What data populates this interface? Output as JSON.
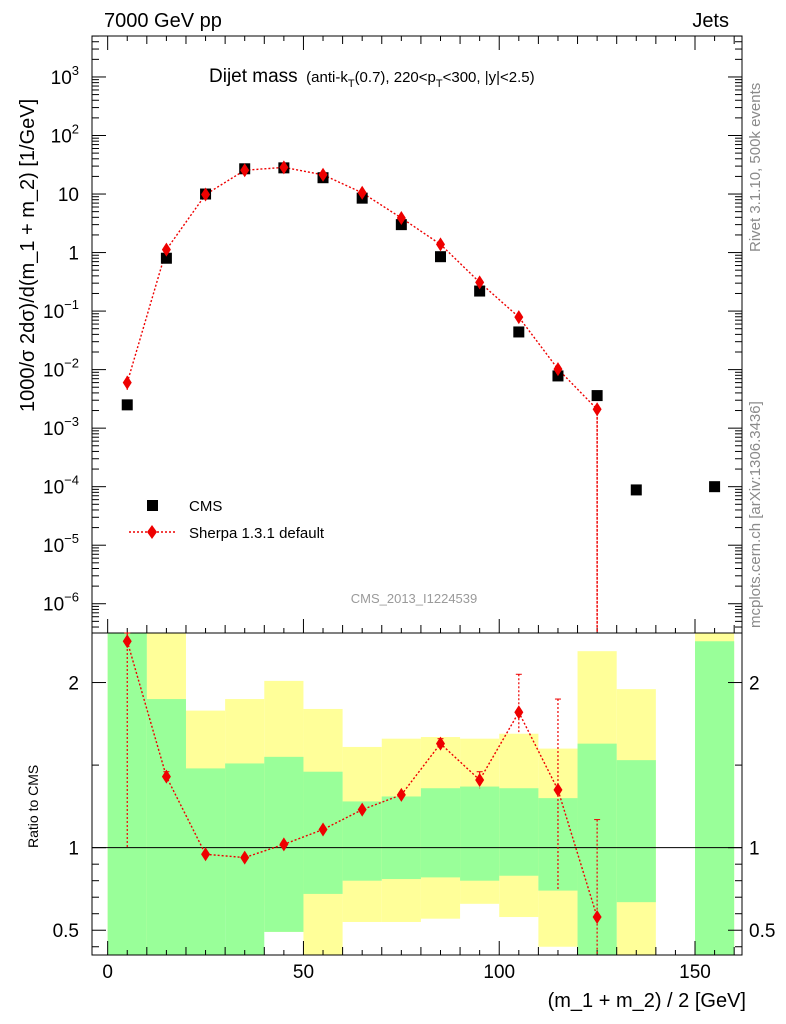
{
  "header": {
    "left": "7000 GeV pp",
    "right": "Jets"
  },
  "side_labels": {
    "rivet": "Rivet 3.1.10,  500k events",
    "mcplots": "mcplots.cern.ch [arXiv:1306.3436]"
  },
  "watermark": "CMS_2013_I1224539",
  "colors": {
    "green_band": "#99ff99",
    "yellow_band": "#ffff99",
    "mc": "#ee0000",
    "data": "#000000"
  },
  "chart_data": [
    {
      "type": "scatter",
      "title_main": "Dijet mass",
      "title_sub": "(anti-k",
      "title_sub_T": "T",
      "title_sub_mid": "(0.7), 220<p",
      "title_sub_T2": "T",
      "title_sub_end": "<300, |y|<2.5)",
      "ylabel": "1000/σ 2dσ)/d(m_1 + m_2) [1/GeV]",
      "yscale": "log",
      "ylim_exp": [
        -6.5,
        3.7
      ],
      "xlim": [
        -4,
        162
      ],
      "y_ticks": [
        {
          "v": 1000,
          "base": "10",
          "exp": "3"
        },
        {
          "v": 100,
          "base": "10",
          "exp": "2"
        },
        {
          "v": 10,
          "base": "10",
          "exp": ""
        },
        {
          "v": 1,
          "base": "1",
          "exp": ""
        },
        {
          "v": 0.1,
          "base": "10",
          "exp": "−1"
        },
        {
          "v": 0.01,
          "base": "10",
          "exp": "−2"
        },
        {
          "v": 0.001,
          "base": "10",
          "exp": "−3"
        },
        {
          "v": 0.0001,
          "base": "10",
          "exp": "−4"
        },
        {
          "v": 1e-05,
          "base": "10",
          "exp": "−5"
        },
        {
          "v": 1e-06,
          "base": "10",
          "exp": "−6"
        }
      ],
      "legend": [
        {
          "name": "CMS",
          "marker": "square"
        },
        {
          "name": "Sherpa 1.3.1 default",
          "marker": "diamond"
        }
      ],
      "series": [
        {
          "name": "CMS",
          "x": [
            5,
            15,
            25,
            35,
            45,
            55,
            65,
            75,
            85,
            95,
            105,
            115,
            125,
            135,
            155
          ],
          "y": [
            0.0025,
            0.8,
            10,
            27,
            28,
            19,
            8.5,
            3.0,
            0.85,
            0.22,
            0.044,
            0.0078,
            0.0036,
            8.8e-05,
            0.0001
          ]
        },
        {
          "name": "Sherpa 1.3.1 default",
          "x": [
            5,
            15,
            25,
            35,
            45,
            55,
            65,
            75,
            85,
            95,
            105,
            115,
            125
          ],
          "y": [
            0.006,
            1.12,
            9.8,
            25.5,
            28.5,
            21.3,
            10.5,
            3.9,
            1.38,
            0.31,
            0.079,
            0.0102,
            0.0021
          ],
          "yerr_low": [
            0.0045,
            0.9,
            9.4,
            25.2,
            28.2,
            21.0,
            10.3,
            3.8,
            1.34,
            0.3,
            0.074,
            0.0085,
            1e-07
          ],
          "yerr_high": [
            0.0078,
            1.35,
            10.2,
            25.8,
            28.8,
            21.6,
            10.7,
            4.0,
            1.42,
            0.32,
            0.084,
            0.012,
            0.0024
          ]
        }
      ]
    },
    {
      "type": "scatter",
      "ylabel": "Ratio to CMS",
      "xlabel": "(m_1 + m_2) / 2 [GeV]",
      "ylim": [
        0.35,
        2.3
      ],
      "xlim": [
        -4,
        162
      ],
      "x_ticks": [
        0,
        50,
        100,
        150
      ],
      "y_ticks": [
        {
          "v": 2,
          "label": "2"
        },
        {
          "v": 1,
          "label": "1"
        },
        {
          "v": 0.5,
          "label": "0.5"
        }
      ],
      "bands": [
        {
          "x0": 0,
          "x1": 10,
          "y_lo": 0.35,
          "y_hi": 2.3,
          "g_lo": 0.35,
          "g_hi": 2.3
        },
        {
          "x0": 10,
          "x1": 20,
          "y_lo": 0.35,
          "y_hi": 2.3,
          "g_lo": 0.35,
          "g_hi": 1.9
        },
        {
          "x0": 20,
          "x1": 30,
          "y_lo": 0.72,
          "y_hi": 1.83,
          "g_lo": 0.35,
          "g_hi": 1.48
        },
        {
          "x0": 30,
          "x1": 40,
          "y_lo": 0.65,
          "y_hi": 1.9,
          "g_lo": 0.35,
          "g_hi": 1.51
        },
        {
          "x0": 40,
          "x1": 50,
          "y_lo": 0.49,
          "y_hi": 2.01,
          "g_lo": 0.49,
          "g_hi": 1.55
        },
        {
          "x0": 50,
          "x1": 60,
          "y_lo": 0.35,
          "y_hi": 1.84,
          "g_lo": 0.72,
          "g_hi": 1.46
        },
        {
          "x0": 60,
          "x1": 70,
          "y_lo": 0.55,
          "y_hi": 1.61,
          "g_lo": 0.8,
          "g_hi": 1.28
        },
        {
          "x0": 70,
          "x1": 80,
          "y_lo": 0.55,
          "y_hi": 1.66,
          "g_lo": 0.81,
          "g_hi": 1.31
        },
        {
          "x0": 80,
          "x1": 90,
          "y_lo": 0.57,
          "y_hi": 1.67,
          "g_lo": 0.82,
          "g_hi": 1.36
        },
        {
          "x0": 90,
          "x1": 100,
          "y_lo": 0.66,
          "y_hi": 1.66,
          "g_lo": 0.8,
          "g_hi": 1.37
        },
        {
          "x0": 100,
          "x1": 110,
          "y_lo": 0.58,
          "y_hi": 1.69,
          "g_lo": 0.83,
          "g_hi": 1.36
        },
        {
          "x0": 110,
          "x1": 120,
          "y_lo": 0.4,
          "y_hi": 1.6,
          "g_lo": 0.74,
          "g_hi": 1.3
        },
        {
          "x0": 120,
          "x1": 130,
          "y_lo": 0.35,
          "y_hi": 2.19,
          "g_lo": 0.35,
          "g_hi": 1.63
        },
        {
          "x0": 130,
          "x1": 140,
          "y_lo": 0.35,
          "y_hi": 1.96,
          "g_lo": 0.67,
          "g_hi": 1.53
        },
        {
          "x0": 150,
          "x1": 160,
          "y_lo": 0.35,
          "y_hi": 2.3,
          "g_lo": 0.35,
          "g_hi": 2.25
        }
      ],
      "series": [
        {
          "name": "Sherpa 1.3.1 default",
          "x": [
            5,
            15,
            25,
            35,
            45,
            55,
            65,
            75,
            85,
            95,
            105,
            115,
            125
          ],
          "y": [
            2.25,
            1.43,
            0.96,
            0.94,
            1.02,
            1.11,
            1.23,
            1.32,
            1.63,
            1.41,
            1.82,
            1.35,
            0.58
          ],
          "yerr_low": [
            1.0,
            1.4,
            0.95,
            0.93,
            1.01,
            1.1,
            1.22,
            1.31,
            1.6,
            1.36,
            1.7,
            0.75,
            0.35
          ],
          "yerr_high": [
            2.3,
            1.46,
            0.97,
            0.95,
            1.03,
            1.12,
            1.24,
            1.33,
            1.66,
            1.46,
            2.05,
            1.9,
            1.17
          ]
        }
      ]
    }
  ]
}
